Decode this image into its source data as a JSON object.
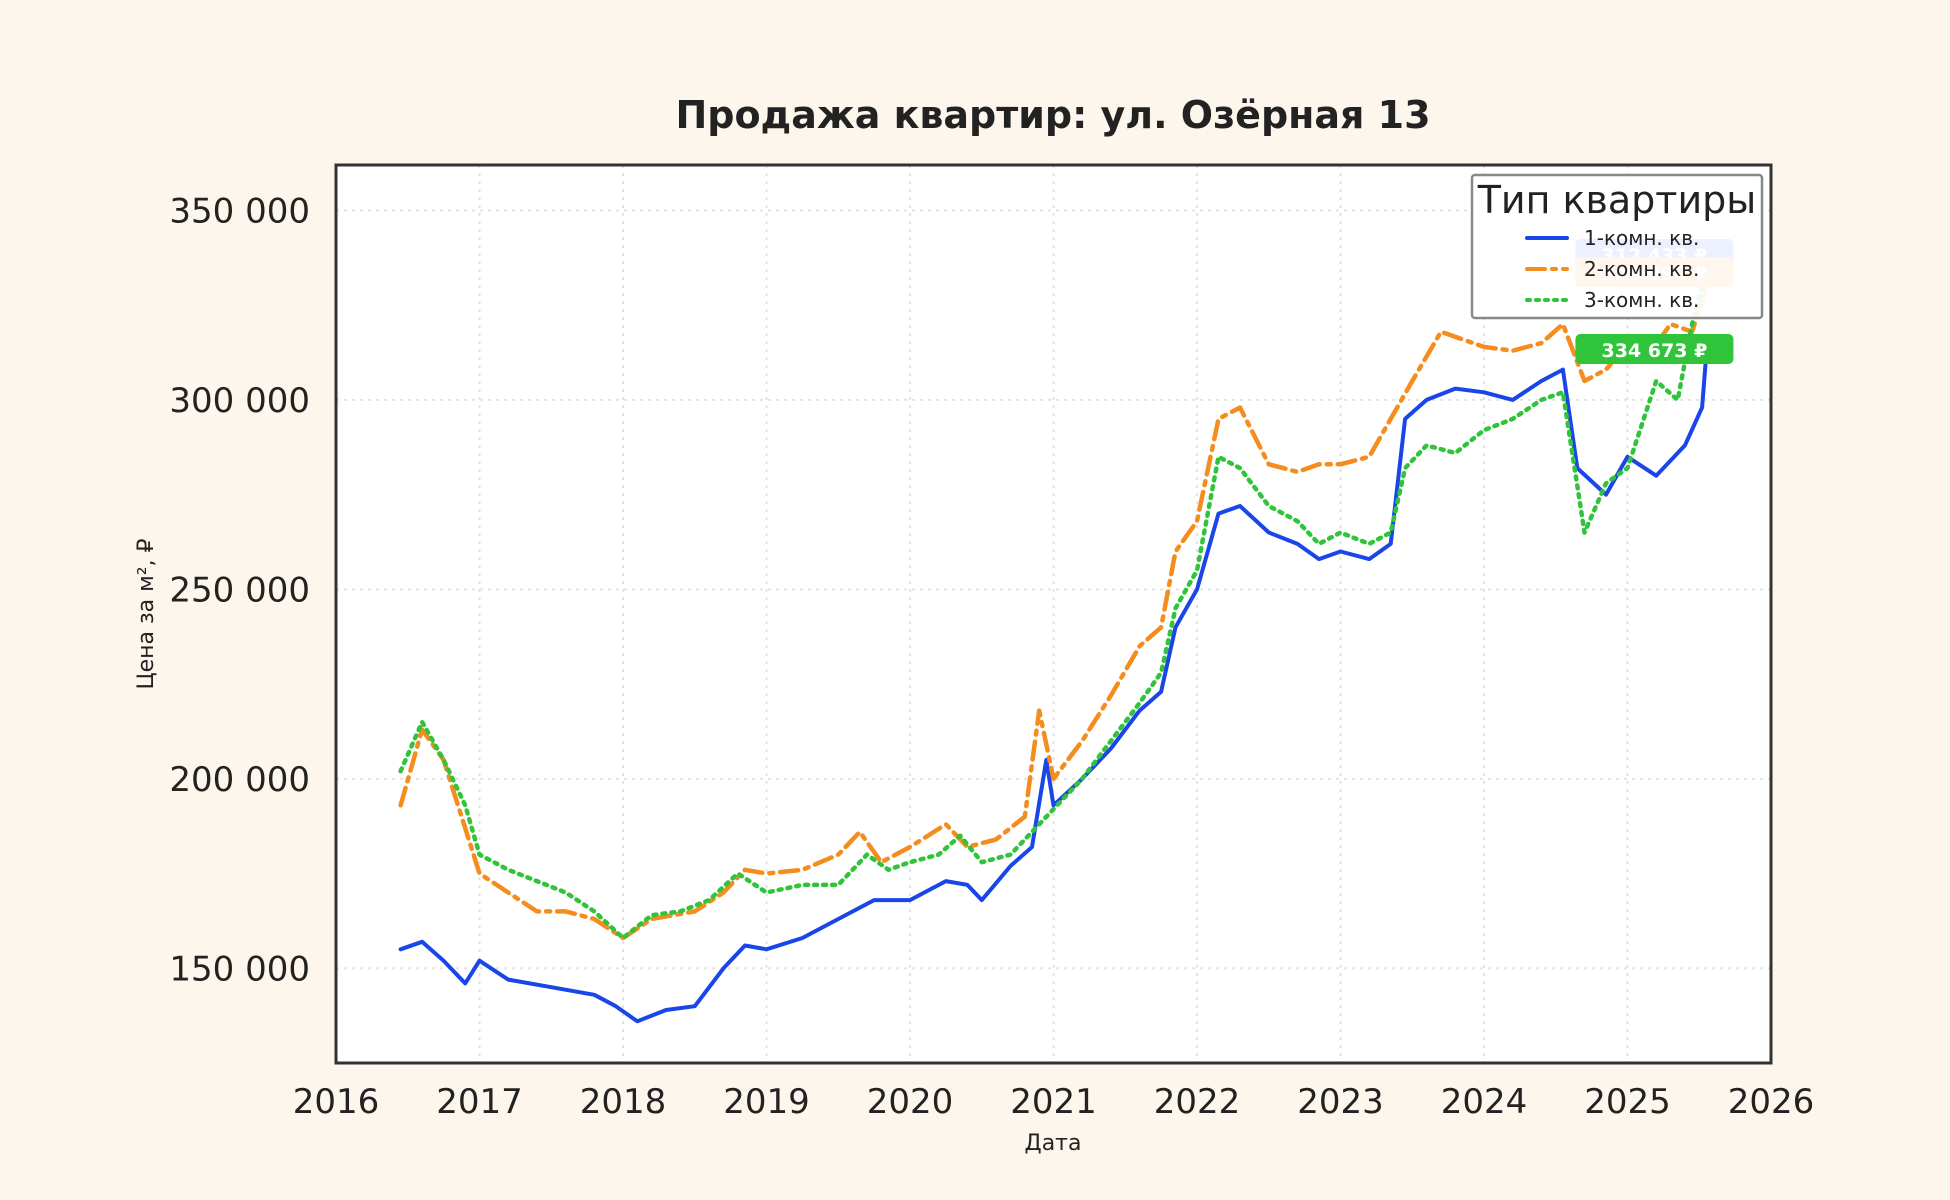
{
  "chart_data": {
    "type": "line",
    "title": "Продажа квартир: ул. Озёрная 13",
    "xlabel": "Дата",
    "ylabel": "Цена за м², ₽",
    "xlim": [
      2016,
      2026
    ],
    "ylim": [
      125000,
      362000
    ],
    "x_ticks": [
      "2016",
      "2017",
      "2018",
      "2019",
      "2020",
      "2021",
      "2022",
      "2023",
      "2024",
      "2025",
      "2026"
    ],
    "y_ticks": [
      {
        "value": 150000,
        "label": "150 000"
      },
      {
        "value": 200000,
        "label": "200 000"
      },
      {
        "value": 250000,
        "label": "250 000"
      },
      {
        "value": 300000,
        "label": "300 000"
      },
      {
        "value": 350000,
        "label": "350 000"
      }
    ],
    "grid": true,
    "legend": {
      "title": "Тип квартиры",
      "position": "top-right"
    },
    "series": [
      {
        "name": "1-комн. кв.",
        "color": "#1a45e8",
        "style": "solid",
        "end_label": "312 433 ₽",
        "points": [
          [
            2016.45,
            155000
          ],
          [
            2016.6,
            157000
          ],
          [
            2016.75,
            152000
          ],
          [
            2016.9,
            146000
          ],
          [
            2017.0,
            152000
          ],
          [
            2017.2,
            147000
          ],
          [
            2017.5,
            145000
          ],
          [
            2017.8,
            143000
          ],
          [
            2017.95,
            140000
          ],
          [
            2018.1,
            136000
          ],
          [
            2018.3,
            139000
          ],
          [
            2018.5,
            140000
          ],
          [
            2018.7,
            150000
          ],
          [
            2018.85,
            156000
          ],
          [
            2019.0,
            155000
          ],
          [
            2019.25,
            158000
          ],
          [
            2019.5,
            163000
          ],
          [
            2019.75,
            168000
          ],
          [
            2020.0,
            168000
          ],
          [
            2020.25,
            173000
          ],
          [
            2020.4,
            172000
          ],
          [
            2020.5,
            168000
          ],
          [
            2020.7,
            177000
          ],
          [
            2020.85,
            182000
          ],
          [
            2020.95,
            205000
          ],
          [
            2021.0,
            193000
          ],
          [
            2021.2,
            200000
          ],
          [
            2021.4,
            208000
          ],
          [
            2021.6,
            218000
          ],
          [
            2021.75,
            223000
          ],
          [
            2021.85,
            240000
          ],
          [
            2022.0,
            250000
          ],
          [
            2022.15,
            270000
          ],
          [
            2022.3,
            272000
          ],
          [
            2022.5,
            265000
          ],
          [
            2022.7,
            262000
          ],
          [
            2022.85,
            258000
          ],
          [
            2023.0,
            260000
          ],
          [
            2023.2,
            258000
          ],
          [
            2023.35,
            262000
          ],
          [
            2023.45,
            295000
          ],
          [
            2023.6,
            300000
          ],
          [
            2023.8,
            303000
          ],
          [
            2024.0,
            302000
          ],
          [
            2024.2,
            300000
          ],
          [
            2024.4,
            305000
          ],
          [
            2024.55,
            308000
          ],
          [
            2024.65,
            282000
          ],
          [
            2024.85,
            275000
          ],
          [
            2025.0,
            285000
          ],
          [
            2025.2,
            280000
          ],
          [
            2025.4,
            288000
          ],
          [
            2025.52,
            298000
          ],
          [
            2025.55,
            312433
          ]
        ]
      },
      {
        "name": "2-комн. кв.",
        "color": "#f58c1e",
        "style": "dashdot",
        "end_label": "329 990 ₽",
        "points": [
          [
            2016.45,
            193000
          ],
          [
            2016.6,
            213000
          ],
          [
            2016.75,
            205000
          ],
          [
            2016.9,
            187000
          ],
          [
            2017.0,
            175000
          ],
          [
            2017.2,
            170000
          ],
          [
            2017.4,
            165000
          ],
          [
            2017.6,
            165000
          ],
          [
            2017.8,
            163000
          ],
          [
            2018.0,
            158000
          ],
          [
            2018.2,
            163000
          ],
          [
            2018.5,
            165000
          ],
          [
            2018.7,
            170000
          ],
          [
            2018.85,
            176000
          ],
          [
            2019.0,
            175000
          ],
          [
            2019.25,
            176000
          ],
          [
            2019.5,
            180000
          ],
          [
            2019.65,
            186000
          ],
          [
            2019.8,
            178000
          ],
          [
            2020.0,
            182000
          ],
          [
            2020.25,
            188000
          ],
          [
            2020.4,
            182000
          ],
          [
            2020.6,
            184000
          ],
          [
            2020.8,
            190000
          ],
          [
            2020.9,
            218000
          ],
          [
            2021.0,
            200000
          ],
          [
            2021.2,
            210000
          ],
          [
            2021.4,
            222000
          ],
          [
            2021.6,
            235000
          ],
          [
            2021.75,
            240000
          ],
          [
            2021.85,
            260000
          ],
          [
            2022.0,
            268000
          ],
          [
            2022.15,
            295000
          ],
          [
            2022.3,
            298000
          ],
          [
            2022.5,
            283000
          ],
          [
            2022.7,
            281000
          ],
          [
            2022.85,
            283000
          ],
          [
            2023.0,
            283000
          ],
          [
            2023.2,
            285000
          ],
          [
            2023.35,
            295000
          ],
          [
            2023.5,
            305000
          ],
          [
            2023.7,
            318000
          ],
          [
            2023.85,
            316000
          ],
          [
            2024.0,
            314000
          ],
          [
            2024.2,
            313000
          ],
          [
            2024.4,
            315000
          ],
          [
            2024.55,
            320000
          ],
          [
            2024.7,
            305000
          ],
          [
            2024.85,
            308000
          ],
          [
            2025.0,
            315000
          ],
          [
            2025.15,
            312000
          ],
          [
            2025.3,
            320000
          ],
          [
            2025.45,
            318000
          ],
          [
            2025.55,
            329990
          ]
        ]
      },
      {
        "name": "3-комн. кв.",
        "color": "#2fc43a",
        "style": "dotted",
        "end_label": "334 673 ₽",
        "points": [
          [
            2016.45,
            202000
          ],
          [
            2016.6,
            215000
          ],
          [
            2016.75,
            205000
          ],
          [
            2016.9,
            193000
          ],
          [
            2017.0,
            180000
          ],
          [
            2017.2,
            176000
          ],
          [
            2017.4,
            173000
          ],
          [
            2017.6,
            170000
          ],
          [
            2017.8,
            165000
          ],
          [
            2018.0,
            158000
          ],
          [
            2018.2,
            164000
          ],
          [
            2018.4,
            165000
          ],
          [
            2018.6,
            168000
          ],
          [
            2018.8,
            175000
          ],
          [
            2019.0,
            170000
          ],
          [
            2019.25,
            172000
          ],
          [
            2019.5,
            172000
          ],
          [
            2019.7,
            180000
          ],
          [
            2019.85,
            176000
          ],
          [
            2020.0,
            178000
          ],
          [
            2020.2,
            180000
          ],
          [
            2020.35,
            185000
          ],
          [
            2020.5,
            178000
          ],
          [
            2020.7,
            180000
          ],
          [
            2020.9,
            188000
          ],
          [
            2021.0,
            192000
          ],
          [
            2021.2,
            200000
          ],
          [
            2021.4,
            210000
          ],
          [
            2021.6,
            220000
          ],
          [
            2021.75,
            228000
          ],
          [
            2021.85,
            245000
          ],
          [
            2022.0,
            255000
          ],
          [
            2022.15,
            285000
          ],
          [
            2022.3,
            282000
          ],
          [
            2022.5,
            272000
          ],
          [
            2022.7,
            268000
          ],
          [
            2022.85,
            262000
          ],
          [
            2023.0,
            265000
          ],
          [
            2023.2,
            262000
          ],
          [
            2023.35,
            265000
          ],
          [
            2023.45,
            282000
          ],
          [
            2023.6,
            288000
          ],
          [
            2023.8,
            286000
          ],
          [
            2024.0,
            292000
          ],
          [
            2024.2,
            295000
          ],
          [
            2024.4,
            300000
          ],
          [
            2024.55,
            302000
          ],
          [
            2024.7,
            265000
          ],
          [
            2024.85,
            278000
          ],
          [
            2025.0,
            282000
          ],
          [
            2025.2,
            305000
          ],
          [
            2025.35,
            300000
          ],
          [
            2025.45,
            320000
          ],
          [
            2025.55,
            334673
          ]
        ]
      }
    ]
  }
}
